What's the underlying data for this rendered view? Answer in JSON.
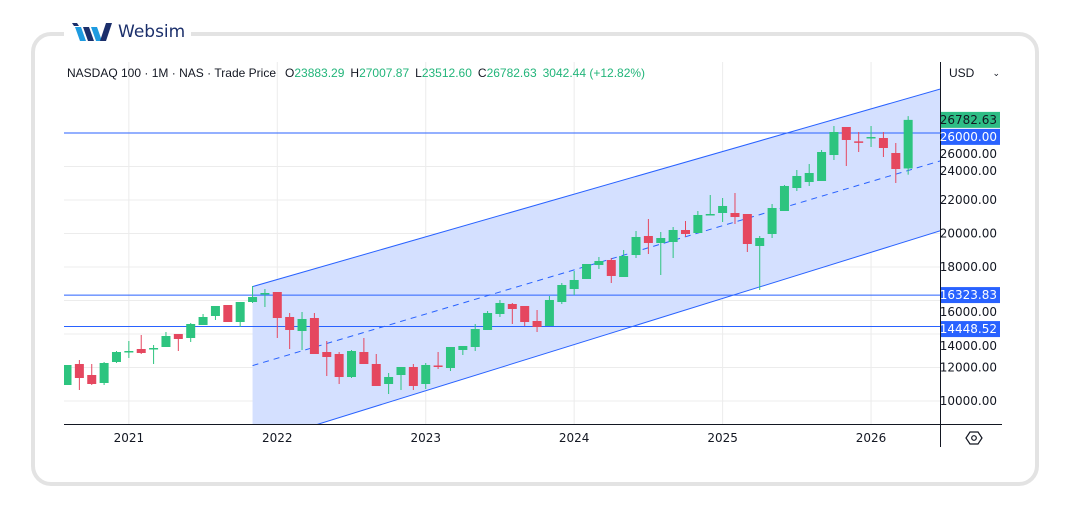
{
  "brand": {
    "name": "Websim"
  },
  "header": {
    "symbol": "NASDAQ 100",
    "interval": "1M",
    "exchange": "NAS",
    "price_type": "Trade Price",
    "open_label": "O",
    "open": "23883.29",
    "high_label": "H",
    "high": "27007.87",
    "low_label": "L",
    "low": "23512.60",
    "close_label": "C",
    "close": "26782.63",
    "change": "3042.44 (+12.82%)"
  },
  "currency": {
    "selected": "USD"
  },
  "icons": {
    "currency_dropdown": "chevron-down-icon",
    "settings": "settings-hexagon-icon"
  },
  "colors": {
    "up": "#2dc47f",
    "down": "#e5475f",
    "line": "#2962ff",
    "channel_fill": "#d4e0ff",
    "last_price_label": "#2ebd85"
  },
  "chart_data": {
    "type": "candlestick",
    "title": "",
    "xlabel": "",
    "ylabel": "",
    "x_range": [
      "2020-08",
      "2026-06"
    ],
    "ylim": [
      8630,
      30240
    ],
    "grid": true,
    "y_ticks": [
      "10000.00",
      "12000.00",
      "14000.00",
      "16000.00",
      "18000.00",
      "20000.00",
      "22000.00",
      "24000.00",
      "26000.00"
    ],
    "x_ticks": [
      {
        "label": "2021",
        "date": "2021-01"
      },
      {
        "label": "2022",
        "date": "2022-01"
      },
      {
        "label": "2023",
        "date": "2023-01"
      },
      {
        "label": "2024",
        "date": "2024-01"
      },
      {
        "label": "2025",
        "date": "2025-01"
      },
      {
        "label": "2026",
        "date": "2026-01"
      }
    ],
    "columns": [
      "date",
      "open",
      "high",
      "low",
      "close"
    ],
    "candles": [
      [
        "2020-08",
        10955,
        12149,
        10955,
        12149
      ],
      [
        "2020-09",
        12209,
        12448,
        10657,
        11373
      ],
      [
        "2020-10",
        11552,
        12209,
        10955,
        11015
      ],
      [
        "2020-11",
        11075,
        12328,
        10955,
        12269
      ],
      [
        "2020-12",
        12328,
        12985,
        12269,
        12925
      ],
      [
        "2021-01",
        12950,
        13582,
        12567,
        12985
      ],
      [
        "2021-02",
        13104,
        13940,
        12806,
        12866
      ],
      [
        "2021-03",
        13140,
        13343,
        12209,
        13164
      ],
      [
        "2021-04",
        13224,
        14119,
        13224,
        13881
      ],
      [
        "2021-05",
        14000,
        14000,
        12985,
        13701
      ],
      [
        "2021-06",
        13761,
        14657,
        13522,
        14597
      ],
      [
        "2021-07",
        14537,
        15194,
        14537,
        15015
      ],
      [
        "2021-08",
        15075,
        15672,
        14836,
        15672
      ],
      [
        "2021-09",
        15731,
        15731,
        14716,
        14716
      ],
      [
        "2021-10",
        14716,
        15910,
        14418,
        15910
      ],
      [
        "2021-11",
        15910,
        16866,
        15851,
        16209
      ],
      [
        "2021-12",
        16420,
        16686,
        15612,
        16448
      ],
      [
        "2022-01",
        16507,
        16507,
        13761,
        14955
      ],
      [
        "2022-02",
        15015,
        15254,
        13104,
        14239
      ],
      [
        "2022-03",
        14179,
        15313,
        13045,
        14896
      ],
      [
        "2022-04",
        14955,
        15254,
        12806,
        12806
      ],
      [
        "2022-05",
        12925,
        13582,
        11493,
        12627
      ],
      [
        "2022-06",
        12806,
        12925,
        11015,
        11433
      ],
      [
        "2022-07",
        11433,
        13045,
        11373,
        12985
      ],
      [
        "2022-08",
        12925,
        13761,
        12209,
        12209
      ],
      [
        "2022-09",
        12209,
        12806,
        10896,
        10896
      ],
      [
        "2022-10",
        11015,
        11672,
        10418,
        11433
      ],
      [
        "2022-11",
        11552,
        12030,
        10657,
        12030
      ],
      [
        "2022-12",
        12030,
        12209,
        10657,
        10896
      ],
      [
        "2023-01",
        11015,
        12269,
        10716,
        12149
      ],
      [
        "2023-02",
        12120,
        12925,
        11910,
        12090
      ],
      [
        "2023-03",
        11970,
        13224,
        11790,
        13224
      ],
      [
        "2023-04",
        13045,
        13284,
        12746,
        13284
      ],
      [
        "2023-05",
        13224,
        14597,
        12985,
        14298
      ],
      [
        "2023-06",
        14239,
        15373,
        14239,
        15254
      ],
      [
        "2023-07",
        15194,
        16030,
        15015,
        15851
      ],
      [
        "2023-08",
        15791,
        15851,
        14597,
        15492
      ],
      [
        "2023-09",
        15672,
        15672,
        14478,
        14716
      ],
      [
        "2023-10",
        14776,
        15433,
        14119,
        14418
      ],
      [
        "2023-11",
        14478,
        16269,
        14478,
        16030
      ],
      [
        "2023-12",
        15910,
        17045,
        15791,
        16925
      ],
      [
        "2024-01",
        16686,
        17761,
        16328,
        17224
      ],
      [
        "2024-02",
        17284,
        18179,
        17284,
        18179
      ],
      [
        "2024-03",
        18119,
        18597,
        17880,
        18358
      ],
      [
        "2024-04",
        18418,
        18537,
        17045,
        17463
      ],
      [
        "2024-05",
        17403,
        19015,
        17403,
        18657
      ],
      [
        "2024-06",
        18716,
        20149,
        18537,
        19791
      ],
      [
        "2024-07",
        19851,
        20866,
        18776,
        19433
      ],
      [
        "2024-08",
        19433,
        20089,
        17522,
        19731
      ],
      [
        "2024-09",
        19492,
        20388,
        18537,
        20209
      ],
      [
        "2024-10",
        20209,
        20746,
        19791,
        19970
      ],
      [
        "2024-11",
        20030,
        21343,
        20030,
        21104
      ],
      [
        "2024-12",
        21130,
        22298,
        21104,
        21164
      ],
      [
        "2025-01",
        21224,
        22119,
        20686,
        21642
      ],
      [
        "2025-02",
        21224,
        22418,
        20567,
        20985
      ],
      [
        "2025-03",
        21164,
        21164,
        18895,
        19373
      ],
      [
        "2025-04",
        19254,
        19851,
        16627,
        19731
      ],
      [
        "2025-05",
        19970,
        21761,
        19731,
        21522
      ],
      [
        "2025-06",
        21343,
        22895,
        21343,
        22836
      ],
      [
        "2025-07",
        22716,
        23791,
        22537,
        23433
      ],
      [
        "2025-08",
        23074,
        24149,
        22836,
        23612
      ],
      [
        "2025-09",
        23134,
        24985,
        23134,
        24865
      ],
      [
        "2025-10",
        24686,
        26418,
        24388,
        26059
      ],
      [
        "2025-11",
        26358,
        26358,
        24030,
        25582
      ],
      [
        "2025-12",
        25500,
        26059,
        24865,
        25462
      ],
      [
        "2026-01",
        25700,
        26418,
        25164,
        25761
      ],
      [
        "2026-02",
        25701,
        26059,
        24567,
        25104
      ],
      [
        "2026-03",
        24806,
        25403,
        23015,
        23850
      ],
      [
        "2026-04",
        23883.29,
        27007.87,
        23512.6,
        26782.63
      ]
    ],
    "horizontal_lines": [
      {
        "value": 26000,
        "label": "26000.00"
      },
      {
        "value": 16323.83,
        "label": "16323.83"
      },
      {
        "value": 14448.52,
        "label": "14448.52"
      }
    ],
    "last_price": {
      "value": 26782.63,
      "label": "26782.63"
    },
    "parallel_channel": {
      "start": "2021-11",
      "end": "2026-06",
      "upper": [
        16830,
        28501
      ],
      "middle": [
        12114,
        24202
      ],
      "lower": [
        7400,
        20023
      ]
    }
  }
}
